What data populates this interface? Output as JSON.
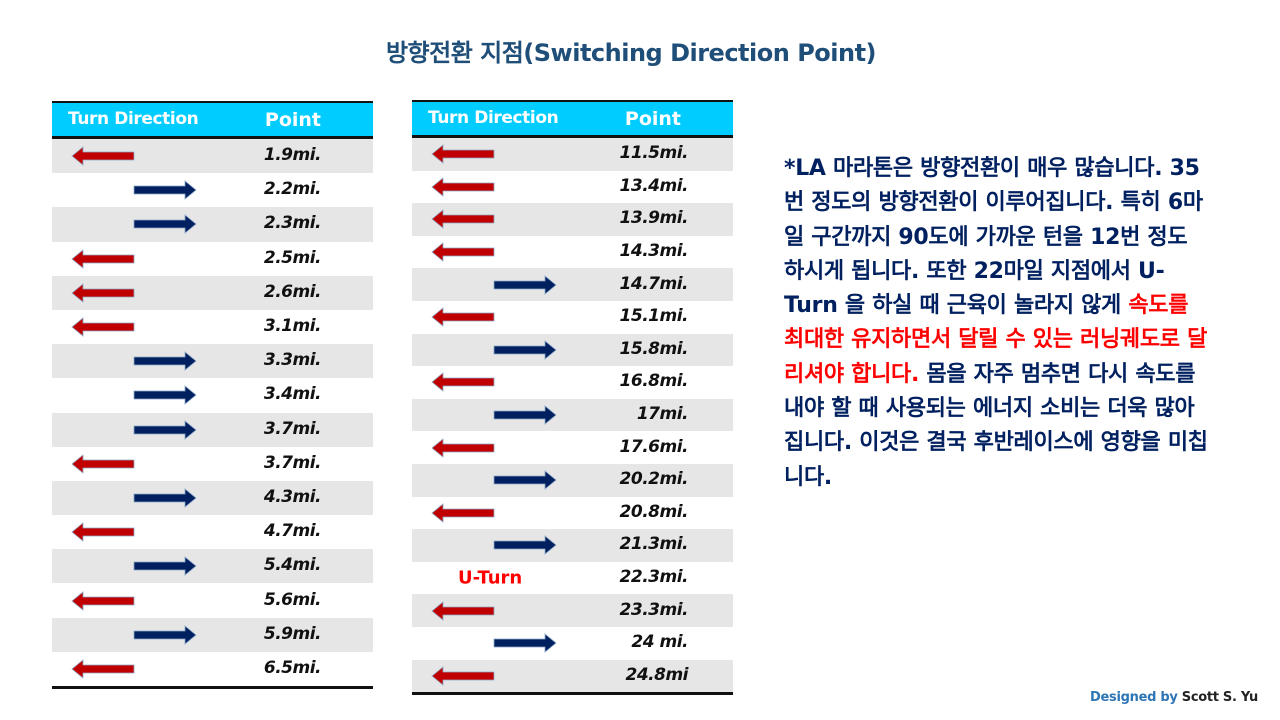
{
  "title": "방향전환 지점(Switching Direction Point)",
  "colors": {
    "header_bg": "#00ccff",
    "left_arrow": "#c00000",
    "right_arrow": "#002060",
    "row_alt": "#e6e6e6",
    "text_navy": "#002060",
    "highlight_red": "#ff0000"
  },
  "table_left": {
    "header": {
      "direction": "Turn Direction",
      "point": "Point"
    },
    "rows": [
      {
        "direction": "left",
        "point": "1.9mi."
      },
      {
        "direction": "right",
        "point": "2.2mi."
      },
      {
        "direction": "right",
        "point": "2.3mi."
      },
      {
        "direction": "left",
        "point": "2.5mi."
      },
      {
        "direction": "left",
        "point": "2.6mi."
      },
      {
        "direction": "left",
        "point": "3.1mi."
      },
      {
        "direction": "right",
        "point": "3.3mi."
      },
      {
        "direction": "right",
        "point": "3.4mi."
      },
      {
        "direction": "right",
        "point": "3.7mi."
      },
      {
        "direction": "left",
        "point": "3.7mi."
      },
      {
        "direction": "right",
        "point": "4.3mi."
      },
      {
        "direction": "left",
        "point": "4.7mi."
      },
      {
        "direction": "right",
        "point": "5.4mi."
      },
      {
        "direction": "left",
        "point": "5.6mi."
      },
      {
        "direction": "right",
        "point": "5.9mi."
      },
      {
        "direction": "left",
        "point": "6.5mi."
      }
    ]
  },
  "table_right": {
    "header": {
      "direction": "Turn Direction",
      "point": "Point"
    },
    "rows": [
      {
        "direction": "left",
        "point": "11.5mi."
      },
      {
        "direction": "left",
        "point": "13.4mi."
      },
      {
        "direction": "left",
        "point": "13.9mi."
      },
      {
        "direction": "left",
        "point": "14.3mi."
      },
      {
        "direction": "right",
        "point": "14.7mi."
      },
      {
        "direction": "left",
        "point": "15.1mi."
      },
      {
        "direction": "right",
        "point": "15.8mi."
      },
      {
        "direction": "left",
        "point": "16.8mi."
      },
      {
        "direction": "right",
        "point": "17mi."
      },
      {
        "direction": "left",
        "point": "17.6mi."
      },
      {
        "direction": "right",
        "point": "20.2mi."
      },
      {
        "direction": "left",
        "point": "20.8mi."
      },
      {
        "direction": "right",
        "point": "21.3mi."
      },
      {
        "direction": "uturn",
        "label": "U-Turn",
        "point": "22.3mi."
      },
      {
        "direction": "left",
        "point": "23.3mi."
      },
      {
        "direction": "right",
        "point": "24 mi."
      },
      {
        "direction": "left",
        "point": "24.8mi"
      }
    ]
  },
  "description": {
    "part1": "*LA 마라톤은 방향전환이 매우 많습니다. 35번 정도의 방향전환이 이루어집니다. 특히 6마일 구간까지 90도에 가까운 턴을 12번 정도 하시게 됩니다. 또한 22마일 지점에서 U-Turn 을 하실 때 근육이 놀라지 않게 ",
    "highlight": "속도를 최대한 유지하면서 달릴 수 있는 러닝궤도로 달리셔야 합니다.",
    "part2": " 몸을 자주 멈추면 다시 속도를 내야 할 때 사용되는 에너지 소비는 더욱 많아집니다. 이것은 결국 후반레이스에 영향을 미칩니다."
  },
  "credit": {
    "designed_by": "Designed by",
    "author": "Scott S. Yu"
  }
}
